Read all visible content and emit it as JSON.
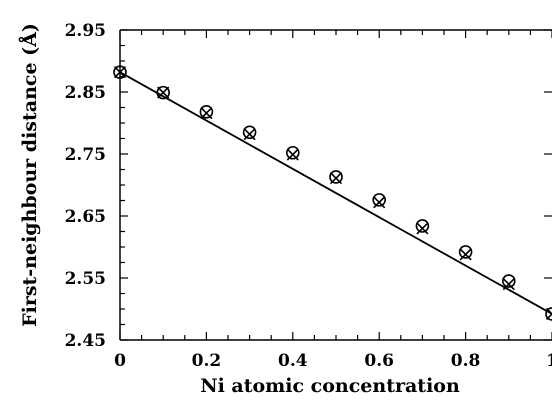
{
  "chart_data": {
    "type": "scatter",
    "xlabel": "Ni atomic concentration",
    "ylabel": "First-neighbour distance (Å)",
    "xlim": [
      0,
      1
    ],
    "ylim": [
      2.45,
      2.95
    ],
    "x_ticks": [
      "0",
      "0.2",
      "0.4",
      "0.6",
      "0.8",
      "1"
    ],
    "y_ticks": [
      "2.95",
      "2.85",
      "2.75",
      "2.65",
      "2.55",
      "2.45"
    ],
    "series": [
      {
        "marker": "circle",
        "x": [
          0,
          0.1,
          0.2,
          0.3,
          0.4,
          0.5,
          0.6,
          0.7,
          0.8,
          0.9,
          1.0
        ],
        "y": [
          2.882,
          2.849,
          2.818,
          2.785,
          2.752,
          2.713,
          2.676,
          2.634,
          2.592,
          2.545,
          2.492
        ]
      },
      {
        "marker": "cross",
        "x": [
          0,
          0.1,
          0.2,
          0.3,
          0.4,
          0.5,
          0.6,
          0.7,
          0.8,
          0.9,
          1.0
        ],
        "y": [
          2.882,
          2.849,
          2.816,
          2.782,
          2.749,
          2.711,
          2.672,
          2.63,
          2.588,
          2.54,
          2.492
        ]
      },
      {
        "type": "line",
        "x": [
          0,
          1.0
        ],
        "y": [
          2.882,
          2.492
        ]
      }
    ],
    "grid": false,
    "legend": "none"
  }
}
